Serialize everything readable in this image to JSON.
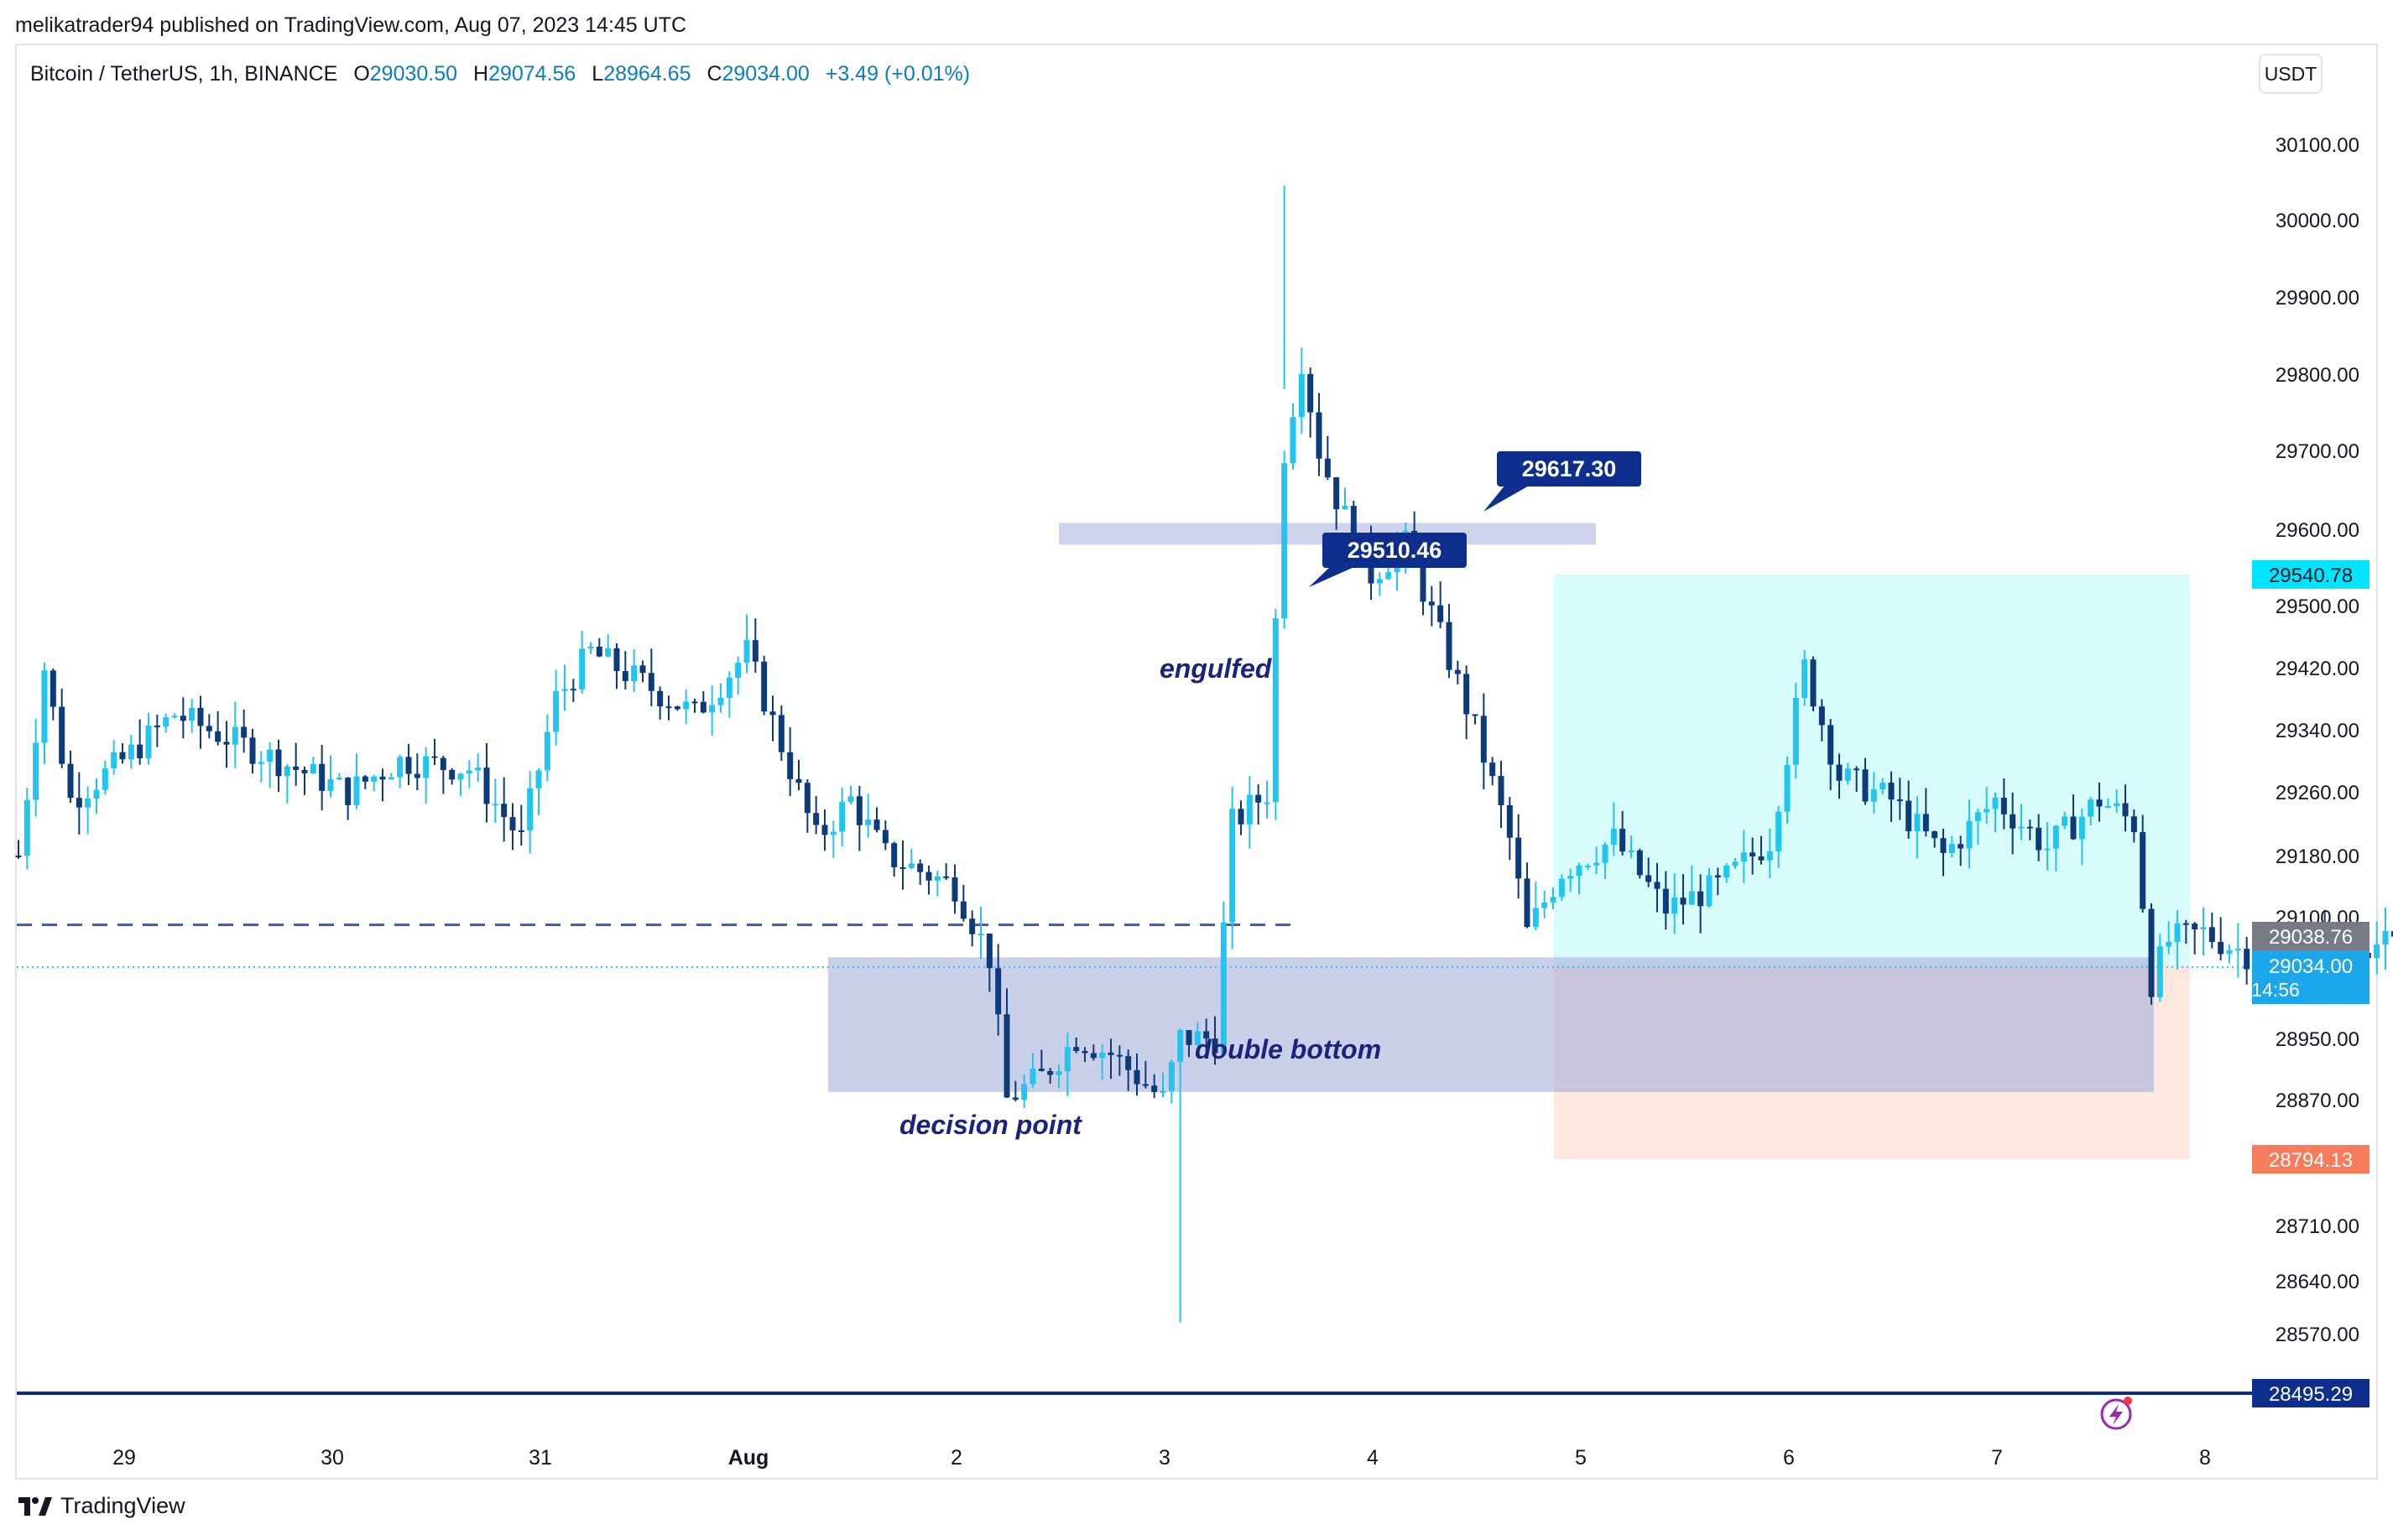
{
  "publisher": "melikatrader94 published on TradingView.com, Aug 07, 2023 14:45 UTC",
  "legend": {
    "symbol": "Bitcoin / TetherUS, 1h, BINANCE",
    "open_label": "O",
    "open": "29030.50",
    "high_label": "H",
    "high": "29074.56",
    "low_label": "L",
    "low": "28964.65",
    "close_label": "C",
    "close": "29034.00",
    "change": "+3.49 (+0.01%)"
  },
  "currency": "USDT",
  "brand": "TradingView",
  "colors": {
    "up": "#22c4f0",
    "down": "#0d3a78",
    "zone": "#c5cbea",
    "target": "#d8fcfc",
    "stop": "#fde8e0",
    "line": "#0d2e8c",
    "cyan_tag": "#00e5ff",
    "orange_tag": "#f77c5b"
  },
  "chart_data": {
    "type": "candlestick",
    "title": "Bitcoin / TetherUS, 1h, BINANCE",
    "y_ticks": [
      "30100.00",
      "30000.00",
      "29900.00",
      "29800.00",
      "29700.00",
      "29600.00",
      "29500.00",
      "29420.00",
      "29340.00",
      "29260.00",
      "29180.00",
      "29100.00",
      "28950.00",
      "28870.00",
      "28710.00",
      "28640.00",
      "28570.00"
    ],
    "x_ticks": [
      "29",
      "30",
      "31",
      "Aug",
      "2",
      "3",
      "4",
      "5",
      "6",
      "7",
      "8"
    ],
    "price_tags": {
      "target": "29540.78",
      "previous_close": "29038.76",
      "last": "29034.00",
      "countdown": "14:56",
      "stop": "28794.13",
      "support_line": "28495.29"
    },
    "callouts": [
      {
        "value": "29617.30"
      },
      {
        "value": "29510.46"
      }
    ],
    "annotations": [
      "engulfed",
      "double bottom",
      "decision point"
    ],
    "zones": {
      "resistance": [
        29580,
        29608
      ],
      "demand": [
        28880,
        29050
      ],
      "target": [
        29040.5,
        29540.78
      ],
      "stop": [
        28794.13,
        29040.5
      ],
      "support_level": 28495.29,
      "dashed_level": 29090
    },
    "candles_description": "BTCUSDT 1h candles, Jul 28 - Aug 7, 2023",
    "low_price": 28585,
    "high_price": 30045
  }
}
